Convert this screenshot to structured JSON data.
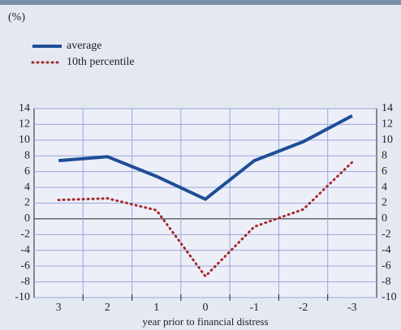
{
  "chart_data": {
    "type": "line",
    "unit_label": "(%)",
    "x_label": "year prior to financial distress",
    "categories": [
      "3",
      "2",
      "1",
      "0",
      "-1",
      "-2",
      "-3"
    ],
    "series": [
      {
        "name": "average",
        "color": "#1f4e96",
        "style": "solid",
        "values": [
          7.4,
          7.9,
          5.4,
          2.5,
          7.4,
          9.8,
          13.1
        ]
      },
      {
        "name": "10th percentile",
        "color": "#a52a2a",
        "style": "dotted",
        "values": [
          2.4,
          2.6,
          1.1,
          -7.3,
          -1.0,
          1.2,
          7.2
        ]
      }
    ],
    "ylim": [
      -10,
      14
    ],
    "yticks": [
      -10,
      -8,
      -6,
      -4,
      -2,
      0,
      2,
      4,
      6,
      8,
      10,
      12,
      14
    ],
    "grid": true
  }
}
